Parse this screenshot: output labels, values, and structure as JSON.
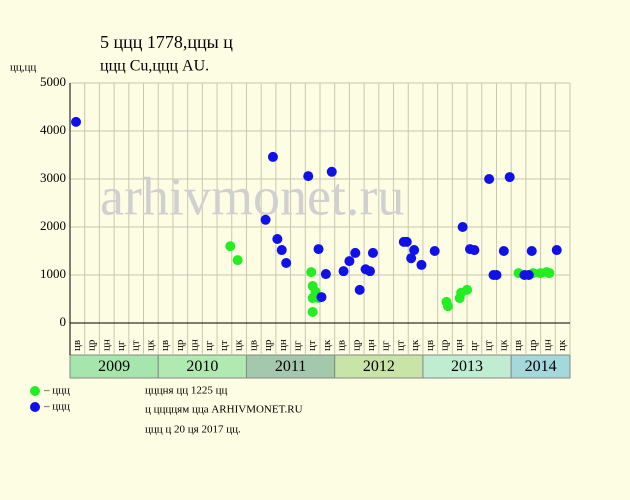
{
  "chart_data": {
    "type": "scatter",
    "title": "5 ццц 1778,ццы ц",
    "subtitle": "ццц Cu,ццц AU.",
    "y_label": "цц,цц",
    "watermark": "arhivmonet.ru",
    "notes": [
      "цццня цц 1225 цц",
      "ц ццццям цца ARHIVMONET.RU",
      "ццц ц 20 ця 2017 цц."
    ],
    "ylim": [
      0,
      5000
    ],
    "yticks": [
      0,
      1000,
      2000,
      3000,
      4000,
      5000
    ],
    "xlim": [
      0,
      34
    ],
    "grid": true,
    "periods": [
      {
        "year": "2009",
        "color": "#a6e6ac",
        "labels": [
          "цв",
          "цр",
          "цн",
          "цг",
          "цт",
          "цк"
        ]
      },
      {
        "year": "2010",
        "color": "#b0eab0",
        "labels": [
          "цв",
          "цр",
          "цн",
          "цг",
          "цт",
          "цк"
        ]
      },
      {
        "year": "2011",
        "color": "#a4c8ac",
        "labels": [
          "цв",
          "цр",
          "цн",
          "цг",
          "цт",
          "цк"
        ]
      },
      {
        "year": "2012",
        "color": "#c8e4a6",
        "labels": [
          "цв",
          "цр",
          "цн",
          "цг",
          "цт",
          "цк"
        ]
      },
      {
        "year": "2013",
        "color": "#c0ecd2",
        "labels": [
          "цв",
          "цр",
          "цн",
          "цг",
          "цт",
          "цк"
        ]
      },
      {
        "year": "2014",
        "color": "#a4d8da",
        "labels": [
          "цв",
          "цр",
          "цн",
          "цк"
        ]
      }
    ],
    "series": [
      {
        "name": "– ццц",
        "color": "#22ee22",
        "x": [
          10.9,
          11.4,
          16.4,
          16.5,
          16.5,
          16.7,
          16.9,
          16.5,
          25.6,
          25.7,
          26.5,
          26.6,
          27.0,
          30.5,
          31.5,
          32.0,
          32.4,
          32.6
        ],
        "values": [
          1600,
          1310,
          1060,
          770,
          520,
          650,
          520,
          230,
          440,
          350,
          520,
          630,
          690,
          1040,
          1040,
          1040,
          1060,
          1040
        ]
      },
      {
        "name": "– ццц",
        "color": "#1010e8",
        "x": [
          0.41,
          13.3,
          13.8,
          14.1,
          14.4,
          14.7,
          16.2,
          16.9,
          17.1,
          17.4,
          17.8,
          18.6,
          19.0,
          19.4,
          19.7,
          20.1,
          20.4,
          20.6,
          22.7,
          22.9,
          23.2,
          23.4,
          23.9,
          24.8,
          26.7,
          27.2,
          27.5,
          28.5,
          28.8,
          29.0,
          29.5,
          29.9,
          30.9,
          31.2,
          31.4,
          33.1
        ],
        "values": [
          4190,
          2150,
          3460,
          1750,
          1520,
          1250,
          3060,
          1540,
          540,
          1020,
          3150,
          1080,
          1290,
          1460,
          690,
          1120,
          1080,
          1460,
          1690,
          1690,
          1350,
          1520,
          1210,
          1500,
          2000,
          1540,
          1520,
          3000,
          1000,
          1000,
          1500,
          3040,
          1000,
          1000,
          1500,
          1520
        ]
      }
    ]
  }
}
